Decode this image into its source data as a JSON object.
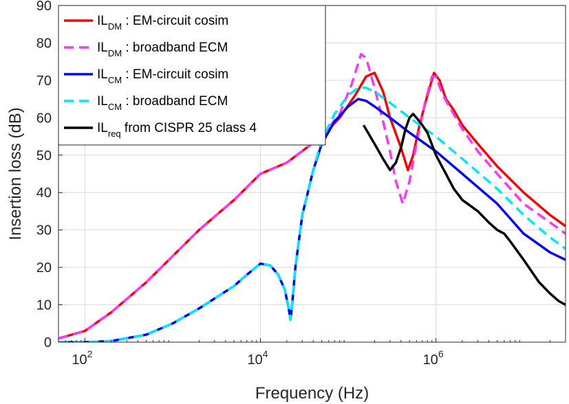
{
  "chart_data": {
    "type": "line",
    "xlabel": "Frequency (Hz)",
    "ylabel": "Insertion loss (dB)",
    "xscale": "log",
    "xlim": [
      50,
      30000000
    ],
    "ylim": [
      0,
      90
    ],
    "grid": true,
    "legend_position": "top-left",
    "x_ticks": [
      {
        "value": 100,
        "base": "10",
        "exp": "2"
      },
      {
        "value": 10000,
        "base": "10",
        "exp": "4"
      },
      {
        "value": 1000000,
        "base": "10",
        "exp": "6"
      }
    ],
    "y_ticks": [
      0,
      10,
      20,
      30,
      40,
      50,
      60,
      70,
      80,
      90
    ],
    "series": [
      {
        "name": "IL_DM : EM-circuit cosim",
        "label_main": "IL",
        "label_sub": "DM",
        "label_rest": " : EM-circuit cosim",
        "color": "#ff0000",
        "dash": "solid",
        "x": [
          50,
          100,
          200,
          500,
          1000,
          2000,
          5000,
          10000,
          20000,
          50000,
          80000,
          120000,
          160000,
          200000,
          250000,
          300000,
          400000,
          480000,
          550000,
          650000,
          800000,
          950000,
          1100000,
          1300000,
          1600000,
          2000000,
          3000000,
          5000000,
          10000000,
          20000000,
          30000000
        ],
        "y": [
          1,
          3,
          8,
          16,
          23,
          30,
          38,
          45,
          48,
          55,
          60,
          66,
          71,
          72,
          67,
          60,
          52,
          46,
          50,
          58,
          66,
          72,
          70,
          65,
          62,
          58,
          53,
          47,
          40,
          34,
          31
        ]
      },
      {
        "name": "IL_DM : broadband ECM",
        "label_main": "IL",
        "label_sub": "DM",
        "label_rest": " : broadband ECM",
        "color": "#ff33ff",
        "dash": "dashed",
        "x": [
          50,
          100,
          200,
          500,
          1000,
          2000,
          5000,
          10000,
          20000,
          50000,
          80000,
          110000,
          140000,
          160000,
          200000,
          250000,
          300000,
          350000,
          420000,
          500000,
          600000,
          750000,
          900000,
          1000000,
          1200000,
          1500000,
          2000000,
          3000000,
          5000000,
          10000000,
          20000000,
          30000000
        ],
        "y": [
          1,
          3,
          8,
          16,
          23,
          30,
          38,
          45,
          48,
          55,
          61,
          69,
          77,
          76,
          68,
          59,
          51,
          43,
          37,
          43,
          53,
          64,
          71,
          71,
          66,
          62,
          57,
          51,
          45,
          37,
          32,
          29
        ]
      },
      {
        "name": "IL_CM : EM-circuit cosim",
        "label_main": "IL",
        "label_sub": "CM",
        "label_rest": " : EM-circuit cosim",
        "color": "#0000ff",
        "dash": "solid",
        "x": [
          50,
          100,
          200,
          500,
          1000,
          2000,
          5000,
          7000,
          10000,
          13000,
          16000,
          19000,
          21000,
          22000,
          23000,
          25000,
          30000,
          40000,
          50000,
          70000,
          100000,
          130000,
          160000,
          200000,
          300000,
          500000,
          1000000,
          2000000,
          5000000,
          10000000,
          20000000,
          30000000
        ],
        "y": [
          0,
          0,
          0.3,
          2,
          5,
          9,
          15,
          18,
          21,
          20.5,
          18,
          14,
          9,
          6,
          10,
          20,
          34,
          46,
          53,
          59,
          63,
          65,
          64.5,
          63,
          60,
          56,
          51,
          45,
          37,
          29,
          24,
          22
        ]
      },
      {
        "name": "IL_CM : broadband ECM",
        "label_main": "IL",
        "label_sub": "CM",
        "label_rest": " : broadband ECM",
        "color": "#00e6ff",
        "dash": "dashed",
        "x": [
          50,
          100,
          200,
          500,
          1000,
          2000,
          5000,
          7000,
          10000,
          13000,
          16000,
          19000,
          21000,
          22000,
          23000,
          25000,
          30000,
          40000,
          50000,
          70000,
          100000,
          130000,
          160000,
          200000,
          300000,
          500000,
          1000000,
          2000000,
          5000000,
          10000000,
          20000000,
          30000000
        ],
        "y": [
          0,
          0,
          0.3,
          2,
          5,
          9,
          15,
          18,
          21,
          20.5,
          18,
          14,
          9,
          6,
          10,
          20,
          34,
          46,
          54,
          61,
          66,
          68,
          68,
          67,
          64,
          60,
          55,
          49,
          41,
          34,
          28,
          25
        ]
      },
      {
        "name": "IL_req from CISPR 25 class 4",
        "label_main": "IL",
        "label_sub": "req",
        "label_rest": " from CISPR 25 class 4",
        "color": "#000000",
        "dash": "solid",
        "x": [
          150000,
          200000,
          250000,
          300000,
          350000,
          400000,
          450000,
          500000,
          550000,
          600000,
          700000,
          800000,
          1000000,
          1300000,
          1600000,
          2000000,
          3000000,
          4000000,
          5000000,
          6000000,
          7000000,
          10000000,
          15000000,
          20000000,
          25000000,
          30000000
        ],
        "y": [
          58,
          53,
          49,
          46,
          48,
          52,
          57,
          60,
          61,
          60,
          58,
          56,
          50,
          45,
          41,
          38,
          35,
          32,
          30,
          29,
          27,
          22,
          16,
          13,
          11,
          10
        ]
      }
    ]
  }
}
